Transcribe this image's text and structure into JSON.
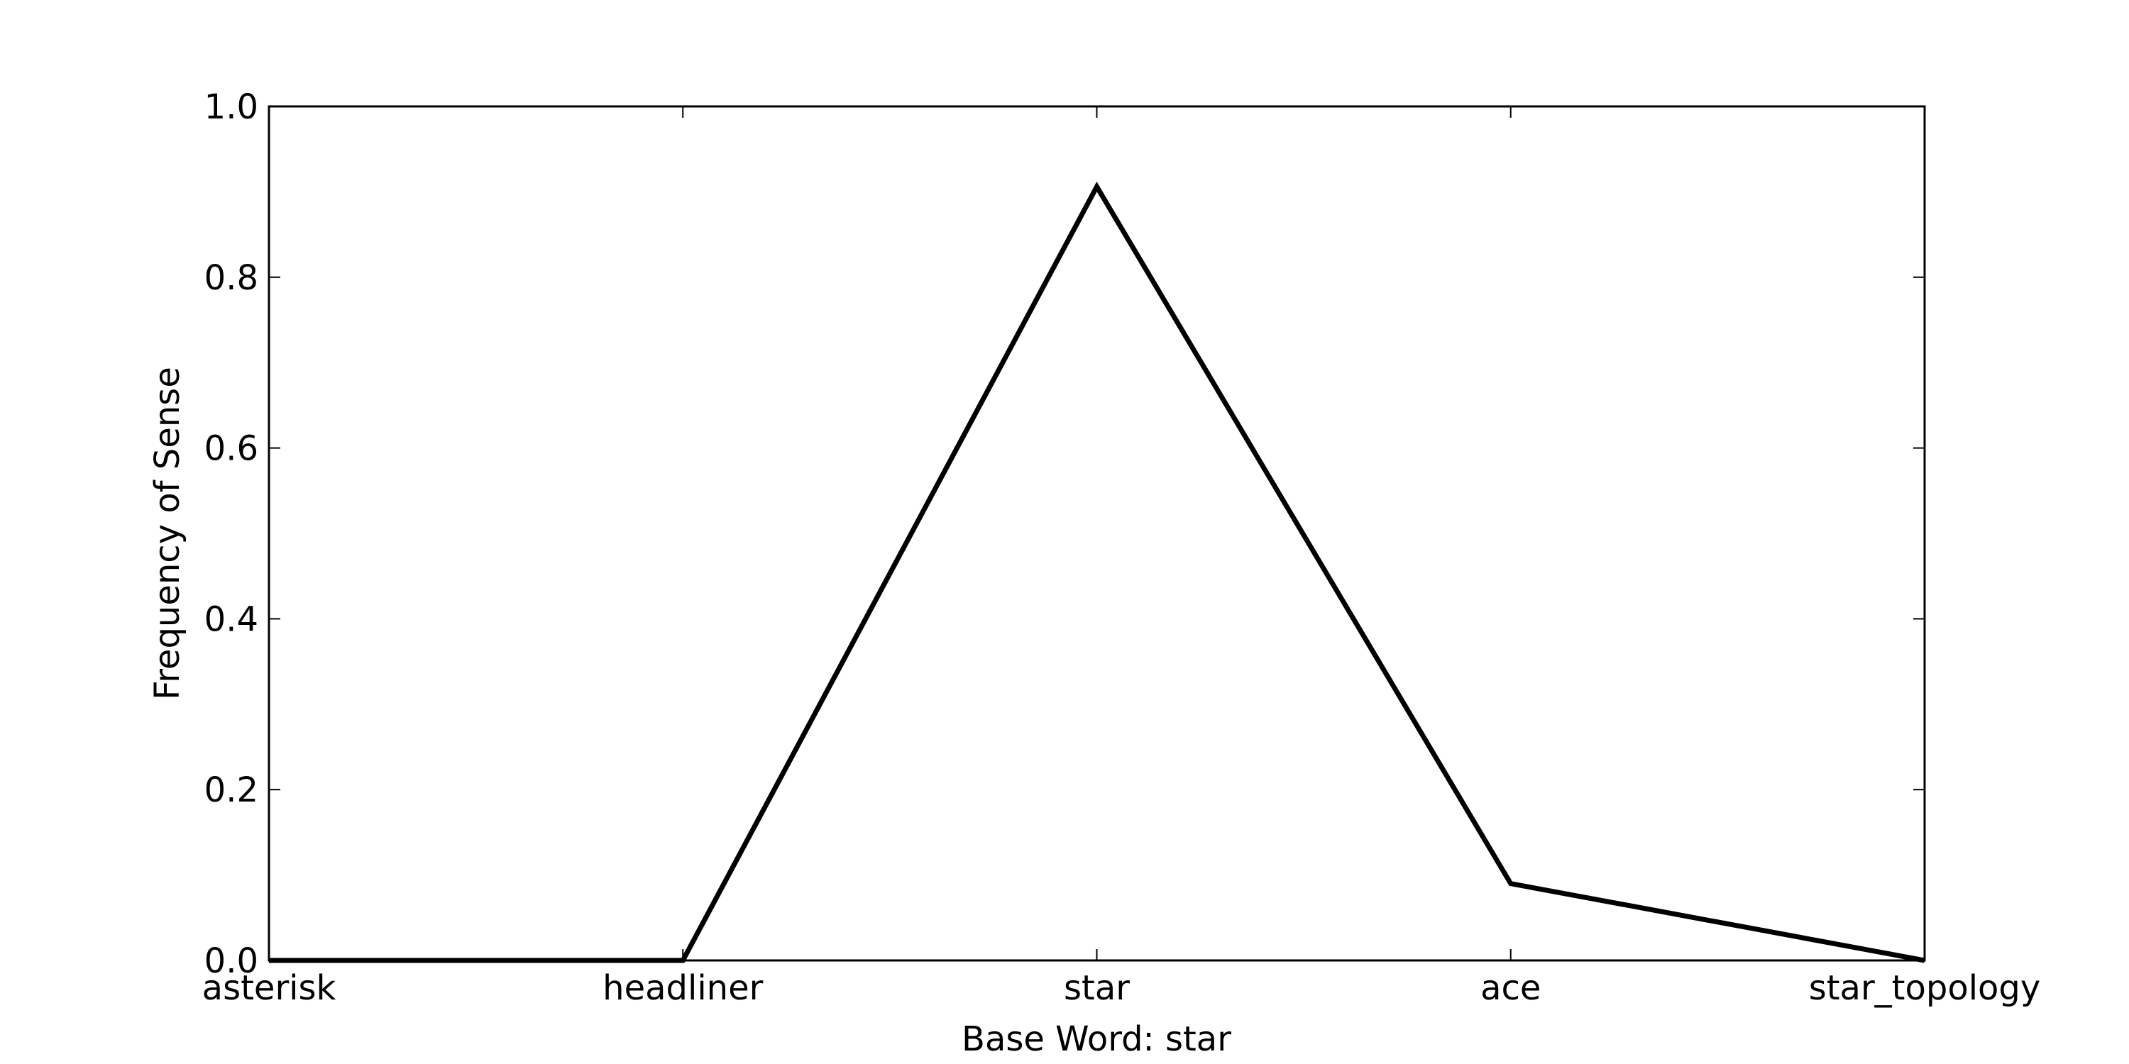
{
  "chart_data": {
    "type": "line",
    "categories": [
      "asterisk",
      "headliner",
      "star",
      "ace",
      "star_topology"
    ],
    "series": [
      {
        "values": [
          0.0,
          0.0,
          0.906,
          0.09,
          0.0
        ]
      }
    ],
    "xlabel": "Base Word: star",
    "ylabel": "Frequency of Sense",
    "ylim": [
      0.0,
      1.0
    ],
    "yticks": [
      "0.0",
      "0.2",
      "0.4",
      "0.6",
      "0.8",
      "1.0"
    ],
    "grid": false,
    "line_color": "#000000"
  }
}
